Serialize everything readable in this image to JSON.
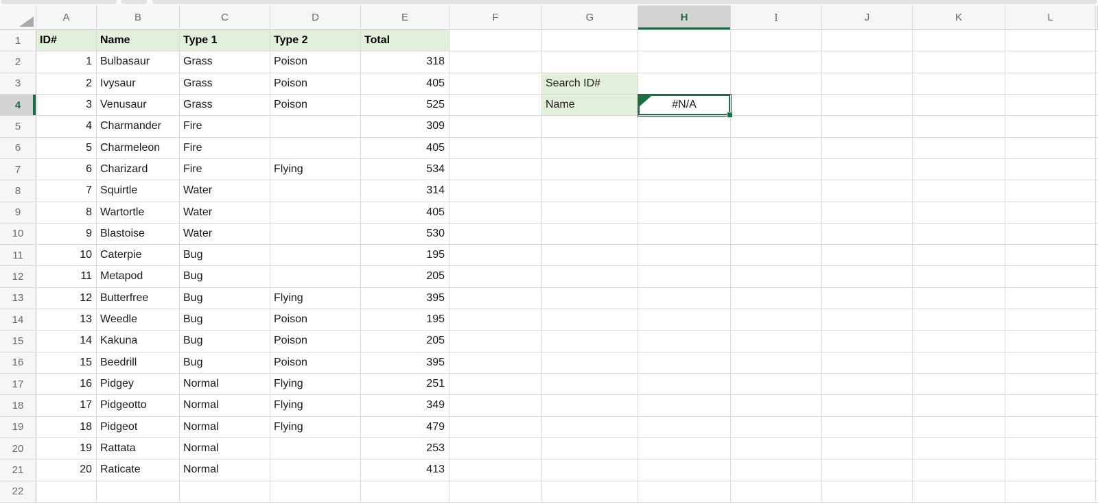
{
  "colors": {
    "accent_green": "#1F6E43",
    "table_header_fill": "#E2EFDA",
    "selected_header_bg": "#D4D4D4"
  },
  "sheet": {
    "columns": [
      "A",
      "B",
      "C",
      "D",
      "E",
      "F",
      "G",
      "H",
      "I",
      "J",
      "K",
      "L"
    ],
    "rows": [
      1,
      2,
      3,
      4,
      5,
      6,
      7,
      8,
      9,
      10,
      11,
      12,
      13,
      14,
      15,
      16,
      17,
      18,
      19,
      20,
      21,
      22
    ],
    "selected_column": "H",
    "selected_row": 4,
    "active_cell": "H4"
  },
  "table": {
    "headers": [
      "ID#",
      "Name",
      "Type 1",
      "Type 2",
      "Total"
    ],
    "rows": [
      [
        1,
        "Bulbasaur",
        "Grass",
        "Poison",
        318
      ],
      [
        2,
        "Ivysaur",
        "Grass",
        "Poison",
        405
      ],
      [
        3,
        "Venusaur",
        "Grass",
        "Poison",
        525
      ],
      [
        4,
        "Charmander",
        "Fire",
        "",
        309
      ],
      [
        5,
        "Charmeleon",
        "Fire",
        "",
        405
      ],
      [
        6,
        "Charizard",
        "Fire",
        "Flying",
        534
      ],
      [
        7,
        "Squirtle",
        "Water",
        "",
        314
      ],
      [
        8,
        "Wartortle",
        "Water",
        "",
        405
      ],
      [
        9,
        "Blastoise",
        "Water",
        "",
        530
      ],
      [
        10,
        "Caterpie",
        "Bug",
        "",
        195
      ],
      [
        11,
        "Metapod",
        "Bug",
        "",
        205
      ],
      [
        12,
        "Butterfree",
        "Bug",
        "Flying",
        395
      ],
      [
        13,
        "Weedle",
        "Bug",
        "Poison",
        195
      ],
      [
        14,
        "Kakuna",
        "Bug",
        "Poison",
        205
      ],
      [
        15,
        "Beedrill",
        "Bug",
        "Poison",
        395
      ],
      [
        16,
        "Pidgey",
        "Normal",
        "Flying",
        251
      ],
      [
        17,
        "Pidgeotto",
        "Normal",
        "Flying",
        349
      ],
      [
        18,
        "Pidgeot",
        "Normal",
        "Flying",
        479
      ],
      [
        19,
        "Rattata",
        "Normal",
        "",
        253
      ],
      [
        20,
        "Raticate",
        "Normal",
        "",
        413
      ]
    ]
  },
  "lookup": {
    "search_id_label": "Search ID#",
    "name_label": "Name",
    "result_value": "#N/A"
  }
}
